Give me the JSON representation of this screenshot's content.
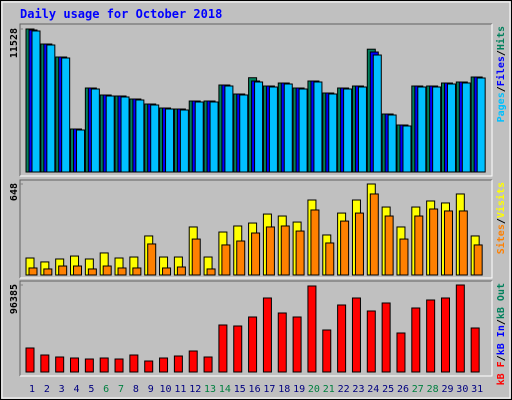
{
  "chart_data": {
    "type": "bar",
    "title": "Daily usage for October 2018",
    "categories": [
      "1",
      "2",
      "3",
      "4",
      "5",
      "6",
      "7",
      "8",
      "9",
      "10",
      "11",
      "12",
      "13",
      "14",
      "15",
      "16",
      "17",
      "18",
      "19",
      "20",
      "21",
      "22",
      "23",
      "24",
      "25",
      "26",
      "27",
      "28",
      "29",
      "30",
      "31"
    ],
    "category_colors": [
      "#000080",
      "#000080",
      "#000080",
      "#000080",
      "#000080",
      "#008040",
      "#008040",
      "#000080",
      "#000080",
      "#000080",
      "#000080",
      "#000080",
      "#008040",
      "#008040",
      "#000080",
      "#000080",
      "#000080",
      "#000080",
      "#000080",
      "#008040",
      "#008040",
      "#000080",
      "#000080",
      "#000080",
      "#000080",
      "#000080",
      "#008040",
      "#008040",
      "#000080",
      "#000080",
      "#000080"
    ],
    "separator": "/",
    "panels": [
      {
        "ylim": [
          0,
          11528
        ],
        "yticks": [
          11528
        ],
        "series": [
          {
            "name": "Hits",
            "color": "#00805c",
            "values": [
              11528,
              10318,
              9270,
              3466,
              6771,
              6207,
              6127,
              5885,
              5481,
              5159,
              5078,
              5723,
              5723,
              7013,
              6288,
              7600,
              6932,
              7174,
              6771,
              7336,
              6368,
              6771,
              6932,
              9900,
              4675,
              3789,
              6932,
              6932,
              7174,
              7255,
              7658
            ]
          },
          {
            "name": "Files",
            "color": "#0000ff",
            "values": [
              11448,
              10318,
              9270,
              3466,
              6771,
              6207,
              6127,
              5885,
              5481,
              5159,
              5078,
              5723,
              5723,
              7013,
              6288,
              7336,
              6932,
              7174,
              6771,
              7336,
              6368,
              6771,
              6932,
              9673,
              4675,
              3789,
              6932,
              6932,
              7174,
              7255,
              7658
            ]
          },
          {
            "name": "Pages",
            "color": "#00c0ff",
            "values": [
              11368,
              10238,
              9190,
              3386,
              6691,
              6127,
              6047,
              5805,
              5401,
              5079,
              4998,
              5643,
              5643,
              6933,
              6208,
              7256,
              6852,
              7094,
              6691,
              7256,
              6288,
              6691,
              6852,
              9431,
              4595,
              3709,
              6852,
              6852,
              7094,
              7175,
              7578
            ]
          }
        ],
        "legend_extra": []
      },
      {
        "ylim": [
          0,
          648
        ],
        "yticks": [
          648
        ],
        "series": [
          {
            "name": "Visits",
            "color": "#ffff00",
            "values": [
              121,
              93,
              114,
              135,
              114,
              157,
              121,
              128,
              278,
              128,
              128,
              342,
              128,
              306,
              349,
              370,
              434,
              420,
              377,
              534,
              285,
              441,
              534,
              648,
              484,
              342,
              484,
              527,
              513,
              577,
              278
            ]
          },
          {
            "name": "Sites",
            "color": "#ff8000",
            "values": [
              50,
              43,
              64,
              64,
              43,
              64,
              50,
              50,
              221,
              50,
              57,
              256,
              43,
              214,
              242,
              299,
              342,
              349,
              313,
              463,
              228,
              384,
              441,
              577,
              420,
              256,
              420,
              470,
              456,
              456,
              214
            ]
          }
        ],
        "legend_extra": []
      },
      {
        "ylim": [
          0,
          96385
        ],
        "yticks": [
          96385
        ],
        "series": [
          {
            "name": "kB F",
            "color": "#ff0000",
            "values": [
              26592,
              18836,
              16620,
              15512,
              14404,
              15512,
              14404,
              18836,
              12188,
              15512,
              17728,
              23268,
              16620,
              52076,
              50968,
              60940,
              81992,
              65372,
              60940,
              95288,
              46536,
              74236,
              81992,
              67588,
              76452,
              43212,
              70912,
              79776,
              81992,
              96385,
              48752
            ]
          }
        ],
        "legend_extra": [
          {
            "name": "kB In",
            "color": "#0000ff"
          },
          {
            "name": "kB Out",
            "color": "#00805c"
          }
        ]
      }
    ]
  }
}
